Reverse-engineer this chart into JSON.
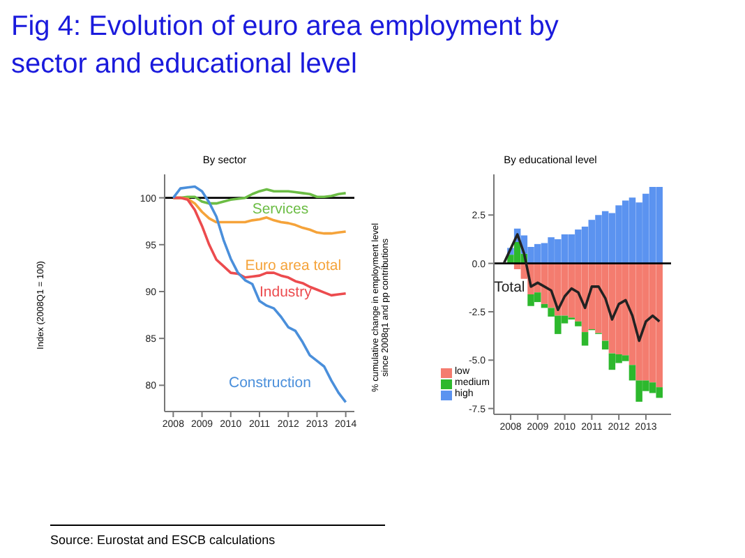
{
  "chart_data": [
    {
      "type": "line",
      "title": "By sector",
      "ylabel": "Index (2008Q1 = 100)",
      "annotations": [
        "Fig 4: Evolution of euro area employment by sector and educational level"
      ],
      "x": [
        2008,
        2008.25,
        2008.5,
        2008.75,
        2009,
        2009.25,
        2009.5,
        2009.75,
        2010,
        2010.25,
        2010.5,
        2010.75,
        2011,
        2011.25,
        2011.5,
        2011.75,
        2012,
        2012.25,
        2012.5,
        2012.75,
        2013,
        2013.25,
        2013.5,
        2013.75,
        2014
      ],
      "series": [
        {
          "name": "Services",
          "color": "#6cbd45",
          "values": [
            100,
            100,
            100.1,
            100.1,
            99.6,
            99.4,
            99.4,
            99.6,
            99.8,
            99.9,
            100,
            100.4,
            100.7,
            100.9,
            100.7,
            100.7,
            100.7,
            100.6,
            100.5,
            100.4,
            100.1,
            100.1,
            100.2,
            100.4,
            100.5
          ]
        },
        {
          "name": "Euro area total",
          "color": "#f5a33a",
          "values": [
            100,
            100,
            99.9,
            99.4,
            98.5,
            97.8,
            97.4,
            97.4,
            97.4,
            97.4,
            97.4,
            97.6,
            97.7,
            97.9,
            97.6,
            97.4,
            97.3,
            97.1,
            96.8,
            96.6,
            96.3,
            96.2,
            96.2,
            96.3,
            96.4
          ]
        },
        {
          "name": "Industry",
          "color": "#ec4b4e",
          "values": [
            100,
            100,
            99.8,
            98.7,
            97,
            95,
            93.4,
            92.7,
            92,
            91.9,
            91.5,
            91.6,
            91.7,
            92,
            92,
            91.7,
            91.5,
            91.1,
            90.9,
            90.5,
            90.2,
            89.9,
            89.6,
            89.7,
            89.8
          ]
        },
        {
          "name": "Construction",
          "color": "#4a8fdb",
          "values": [
            100,
            101,
            101.1,
            101.2,
            100.7,
            99.5,
            98,
            95.5,
            93.5,
            92,
            91.2,
            90.8,
            89,
            88.5,
            88.2,
            87.3,
            86.2,
            85.8,
            84.6,
            83.2,
            82.6,
            82,
            80.5,
            79.2,
            78.2
          ]
        }
      ],
      "xlim": [
        2007.7,
        2014.3
      ],
      "xticks": [
        2008,
        2009,
        2010,
        2011,
        2012,
        2013,
        2014
      ],
      "ylim": [
        77.2,
        102.5
      ],
      "yticks": [
        80,
        85,
        90,
        95,
        100
      ],
      "ref_lines": [
        {
          "axis": "y",
          "value": 100,
          "color": "#000000"
        }
      ],
      "legend": false
    },
    {
      "type": "bar",
      "title": "By educational level",
      "ylabel": "% cumulative change in employment level\nsince 2008q1 and pp contributions",
      "annotations": [
        "Source: Eurostat and ESCB calculations"
      ],
      "stacked": true,
      "x": [
        2008,
        2008.25,
        2008.5,
        2008.75,
        2009,
        2009.25,
        2009.5,
        2009.75,
        2010,
        2010.25,
        2010.5,
        2010.75,
        2011,
        2011.25,
        2011.5,
        2011.75,
        2012,
        2012.25,
        2012.5,
        2012.75,
        2013,
        2013.25,
        2013.5
      ],
      "series": [
        {
          "name": "low",
          "color": "#f47c6f",
          "values": [
            0,
            -0.3,
            -0.8,
            -1.6,
            -1.5,
            -2.1,
            -2.3,
            -2.7,
            -2.7,
            -2.8,
            -3.0,
            -3.55,
            -3.4,
            -3.6,
            -4.0,
            -4.65,
            -4.7,
            -4.75,
            -5.25,
            -6.05,
            -6.05,
            -6.15,
            -6.4
          ]
        },
        {
          "name": "medium",
          "color": "#2db82d",
          "values": [
            0.45,
            1.1,
            0.5,
            -0.6,
            -0.5,
            -0.2,
            -0.45,
            -0.95,
            -0.4,
            -0.1,
            -0.25,
            -0.7,
            -0.05,
            -0.05,
            -0.45,
            -0.85,
            -0.45,
            -0.3,
            -0.8,
            -1.1,
            -0.55,
            -0.55,
            -0.55
          ]
        },
        {
          "name": "high",
          "color": "#5b93f0",
          "values": [
            0.35,
            0.7,
            0.95,
            0.85,
            1.0,
            1.05,
            1.35,
            1.25,
            1.5,
            1.5,
            1.75,
            1.9,
            2.25,
            2.5,
            2.7,
            2.6,
            3.0,
            3.25,
            3.4,
            3.15,
            3.6,
            3.95,
            3.95
          ]
        },
        {
          "name": "Total",
          "type": "line",
          "color": "#222222",
          "x": [
            2007.75,
            2008,
            2008.25,
            2008.5,
            2008.75,
            2009,
            2009.25,
            2009.5,
            2009.75,
            2010,
            2010.25,
            2010.5,
            2010.75,
            2011,
            2011.25,
            2011.5,
            2011.75,
            2012,
            2012.25,
            2012.5,
            2012.75,
            2013,
            2013.25,
            2013.5
          ],
          "values": [
            0,
            0.75,
            1.5,
            0.5,
            -1.2,
            -1.0,
            -1.2,
            -1.4,
            -2.4,
            -1.7,
            -1.3,
            -1.5,
            -2.3,
            -1.2,
            -1.2,
            -1.8,
            -2.9,
            -2.1,
            -1.9,
            -2.7,
            -4.0,
            -3.0,
            -2.7,
            -3.0
          ]
        }
      ],
      "xlim": [
        2007.38,
        2013.93
      ],
      "xticks": [
        2008,
        2009,
        2010,
        2011,
        2012,
        2013
      ],
      "ylim": [
        -7.8,
        4.6
      ],
      "yticks": [
        {
          "value": -7.5,
          "label": "-7.5"
        },
        {
          "value": -5,
          "label": "-5.0"
        },
        {
          "value": -2.5,
          "label": "-2.5"
        },
        {
          "value": 0,
          "label": "0.0"
        },
        {
          "value": 2.5,
          "label": "2.5"
        }
      ],
      "ref_lines": [
        {
          "axis": "y",
          "value": 0,
          "color": "#000000"
        }
      ],
      "legend": "bottom left"
    }
  ]
}
